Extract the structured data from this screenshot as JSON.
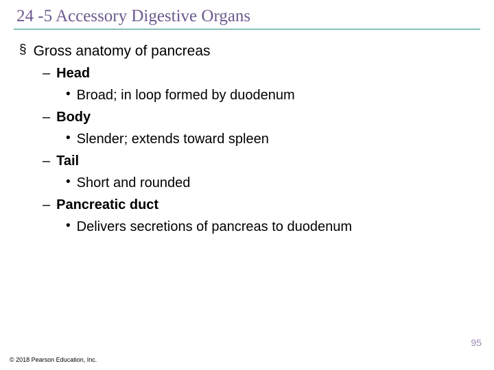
{
  "title": "24 -5 Accessory Digestive Organs",
  "title_color": "#6b5a8e",
  "title_font": "Times New Roman",
  "title_fontsize": 25,
  "underline_color": "#1a8a7a",
  "background_color": "#ffffff",
  "text_color": "#000000",
  "outline": {
    "lvl1_bullet": "§",
    "lvl2_bullet": "–",
    "lvl3_bullet": "•",
    "items": [
      {
        "text": "Gross anatomy of pancreas",
        "children": [
          {
            "text": "Head",
            "children": [
              {
                "text": "Broad; in loop formed by duodenum"
              }
            ]
          },
          {
            "text": "Body",
            "children": [
              {
                "text": "Slender; extends toward spleen"
              }
            ]
          },
          {
            "text": "Tail",
            "children": [
              {
                "text": "Short and rounded"
              }
            ]
          },
          {
            "text": "Pancreatic duct",
            "children": [
              {
                "text": "Delivers secretions of pancreas to duodenum"
              }
            ]
          }
        ]
      }
    ]
  },
  "page_number": "95",
  "page_number_color": "#9a8bb5",
  "copyright": "© 2018 Pearson Education, Inc."
}
